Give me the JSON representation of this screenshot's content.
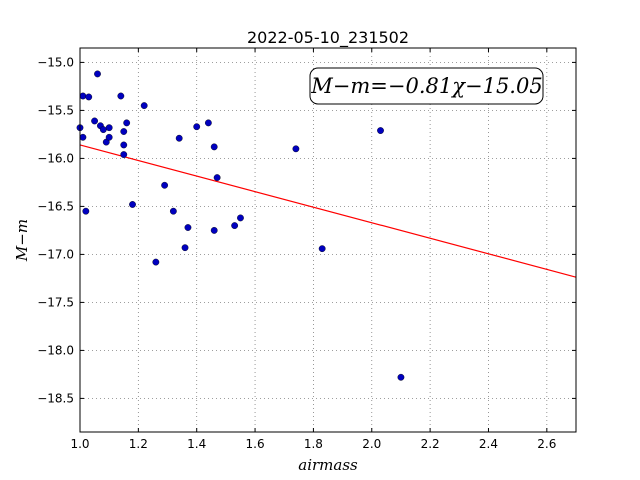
{
  "chart_data": {
    "type": "scatter",
    "title": "2022-05-10_231502",
    "xlabel": "airmass",
    "ylabel": "M−m",
    "xlim": [
      1.0,
      2.7
    ],
    "ylim": [
      -18.85,
      -14.85
    ],
    "xticks": [
      1.0,
      1.2,
      1.4,
      1.6,
      1.8,
      2.0,
      2.2,
      2.4,
      2.6
    ],
    "xtick_labels": [
      "1.0",
      "1.2",
      "1.4",
      "1.6",
      "1.8",
      "2.0",
      "2.2",
      "2.4",
      "2.6"
    ],
    "yticks": [
      -15.0,
      -15.5,
      -16.0,
      -16.5,
      -17.0,
      -17.5,
      -18.0,
      -18.5
    ],
    "ytick_labels": [
      "−15.0",
      "−15.5",
      "−16.0",
      "−16.5",
      "−17.0",
      "−17.5",
      "−18.0",
      "−18.5"
    ],
    "grid": true,
    "series": [
      {
        "type": "scatter",
        "color": "#0000bf",
        "points": [
          [
            1.0,
            -15.68
          ],
          [
            1.01,
            -15.78
          ],
          [
            1.01,
            -15.35
          ],
          [
            1.02,
            -16.55
          ],
          [
            1.03,
            -15.36
          ],
          [
            1.05,
            -15.61
          ],
          [
            1.06,
            -15.12
          ],
          [
            1.07,
            -15.66
          ],
          [
            1.08,
            -15.7
          ],
          [
            1.09,
            -15.83
          ],
          [
            1.1,
            -15.68
          ],
          [
            1.1,
            -15.78
          ],
          [
            1.14,
            -15.35
          ],
          [
            1.15,
            -15.72
          ],
          [
            1.15,
            -15.86
          ],
          [
            1.15,
            -15.96
          ],
          [
            1.16,
            -15.63
          ],
          [
            1.18,
            -16.48
          ],
          [
            1.22,
            -15.45
          ],
          [
            1.26,
            -17.08
          ],
          [
            1.29,
            -16.28
          ],
          [
            1.32,
            -16.55
          ],
          [
            1.34,
            -15.79
          ],
          [
            1.36,
            -16.93
          ],
          [
            1.37,
            -16.72
          ],
          [
            1.4,
            -15.67
          ],
          [
            1.44,
            -15.63
          ],
          [
            1.46,
            -16.75
          ],
          [
            1.46,
            -15.88
          ],
          [
            1.47,
            -16.2
          ],
          [
            1.53,
            -16.7
          ],
          [
            1.55,
            -16.62
          ],
          [
            1.74,
            -15.9
          ],
          [
            1.83,
            -16.94
          ],
          [
            2.03,
            -15.71
          ],
          [
            2.1,
            -18.28
          ]
        ]
      },
      {
        "type": "line",
        "color": "#ff0000",
        "x": [
          1.0,
          2.7
        ],
        "y": [
          -15.86,
          -17.237
        ]
      }
    ],
    "annotation": {
      "placement": "top-right",
      "text": "M−m=−0.81χ−15.05"
    }
  }
}
